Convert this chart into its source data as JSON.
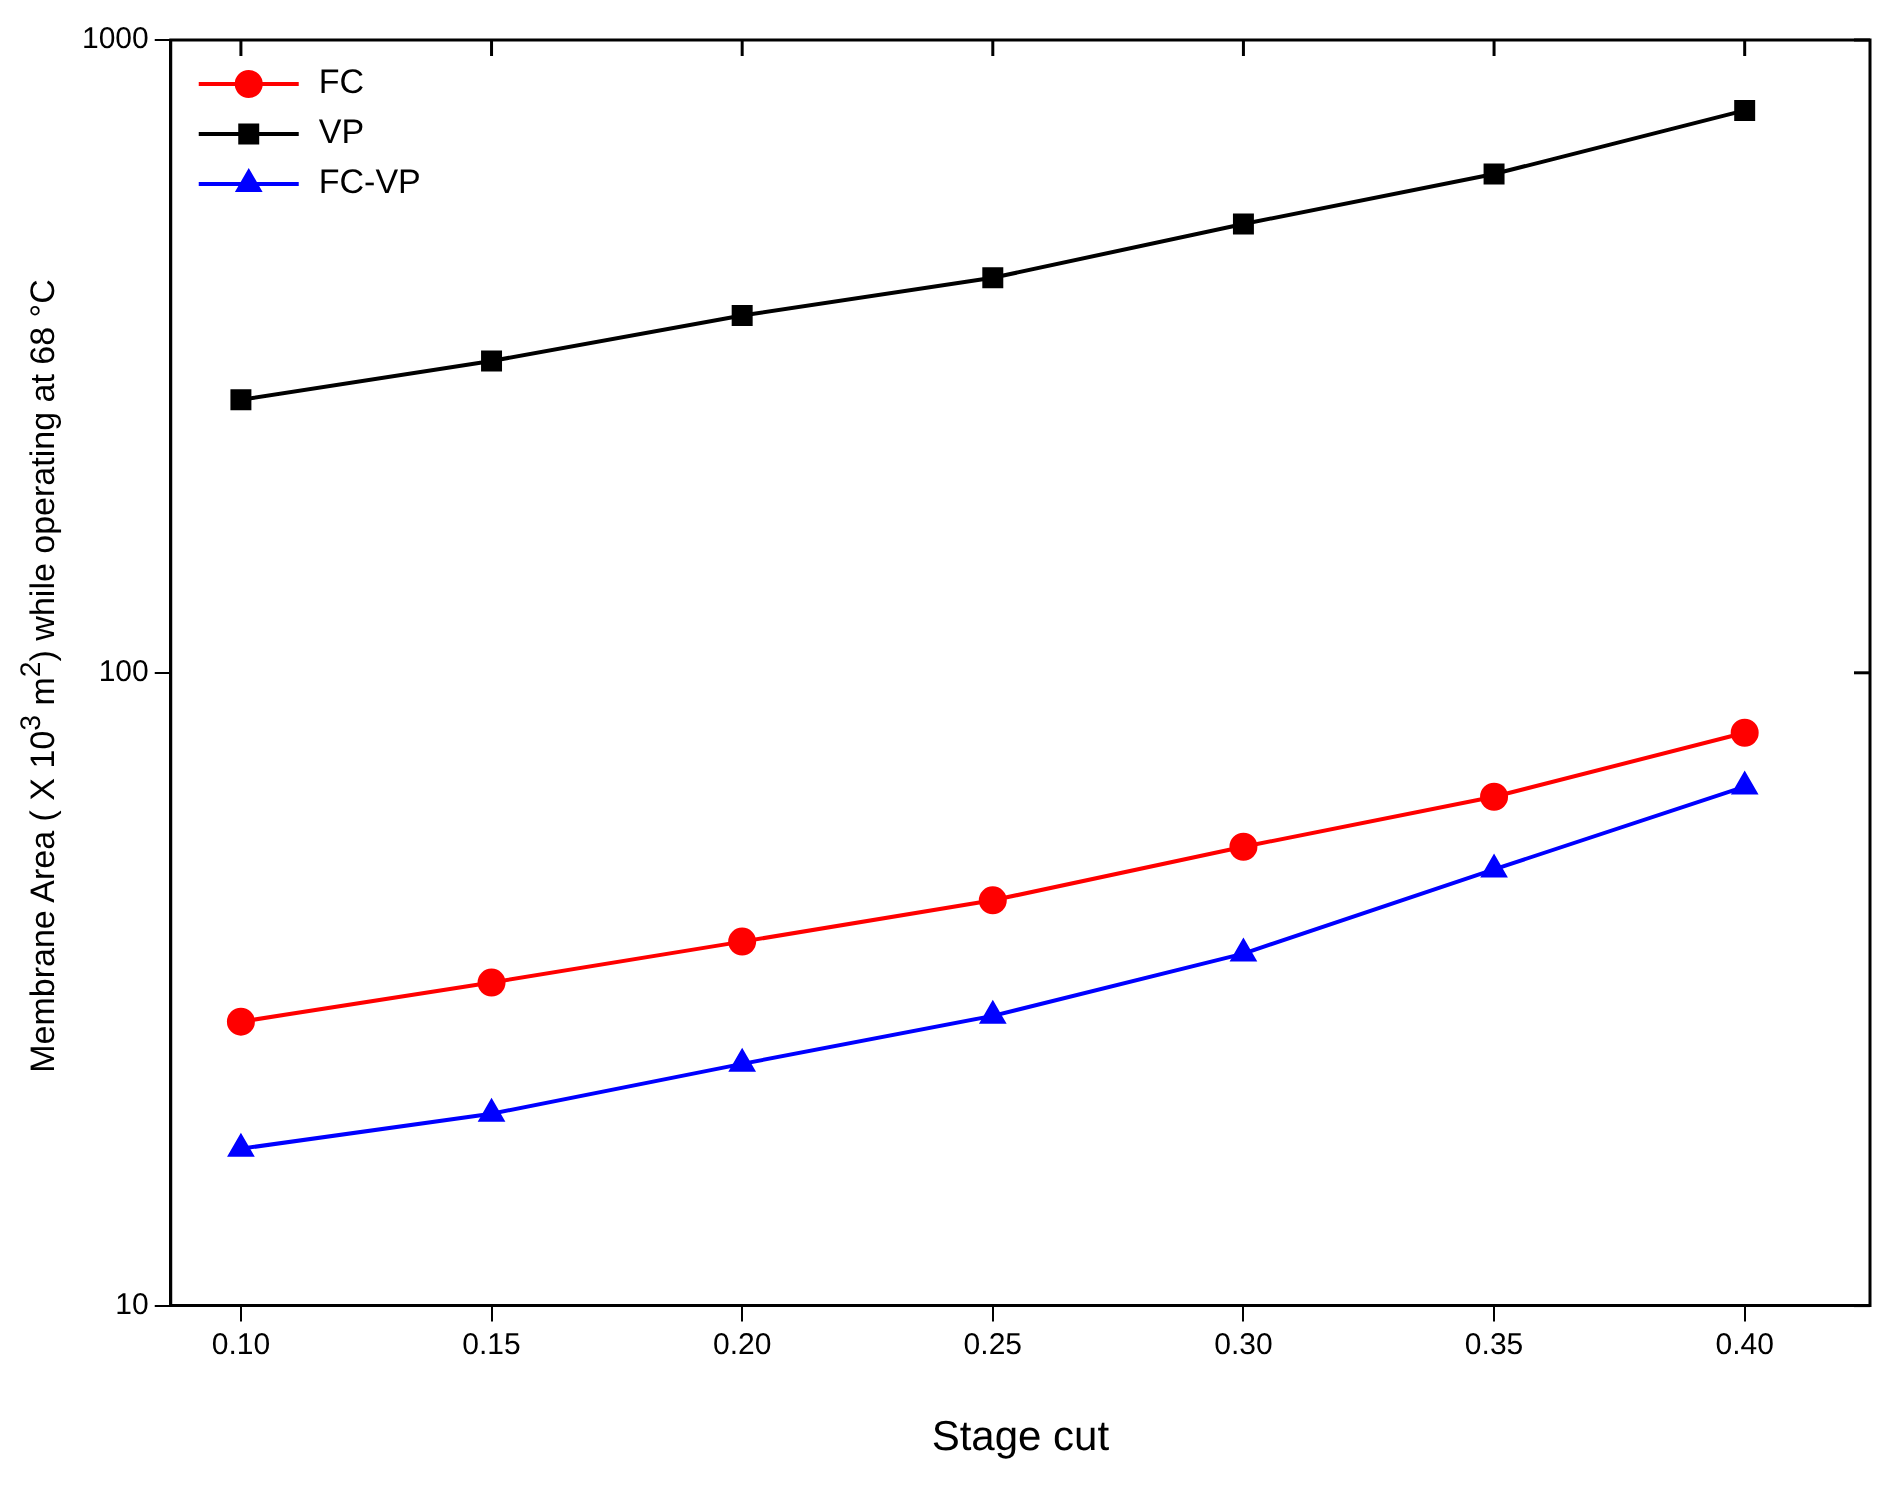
{
  "chart_data": {
    "type": "line",
    "xlabel": "Stage cut",
    "ylabel": "Membrane Area ( X 10$^{3}$ m$^{2}$) while operating at 68 °C",
    "x": [
      0.1,
      0.15,
      0.2,
      0.25,
      0.3,
      0.35,
      0.4
    ],
    "series": [
      {
        "name": "FC",
        "color": "#ff0000",
        "marker": "circle",
        "values": [
          28.1,
          32.4,
          37.6,
          43.7,
          53.1,
          63.7,
          80.4
        ]
      },
      {
        "name": "VP",
        "color": "#000000",
        "marker": "square",
        "values": [
          270,
          311,
          367,
          421,
          512,
          614,
          774
        ]
      },
      {
        "name": "FC-VP",
        "color": "#0000ff",
        "marker": "triangle",
        "values": [
          17.7,
          20.1,
          24.1,
          28.7,
          36.0,
          48.9,
          66.1
        ]
      }
    ],
    "xlim": [
      0.086,
      0.425
    ],
    "xticks": [
      {
        "value": 0.1,
        "label": "0.10"
      },
      {
        "value": 0.15,
        "label": "0.15"
      },
      {
        "value": 0.2,
        "label": "0.20"
      },
      {
        "value": 0.25,
        "label": "0.25"
      },
      {
        "value": 0.3,
        "label": "0.30"
      },
      {
        "value": 0.35,
        "label": "0.35"
      },
      {
        "value": 0.4,
        "label": "0.40"
      }
    ],
    "ylim": [
      10,
      1000
    ],
    "yticks": [
      10,
      100,
      1000
    ],
    "log": "y",
    "grid": false,
    "legend": "top left",
    "line_style": "solid"
  }
}
